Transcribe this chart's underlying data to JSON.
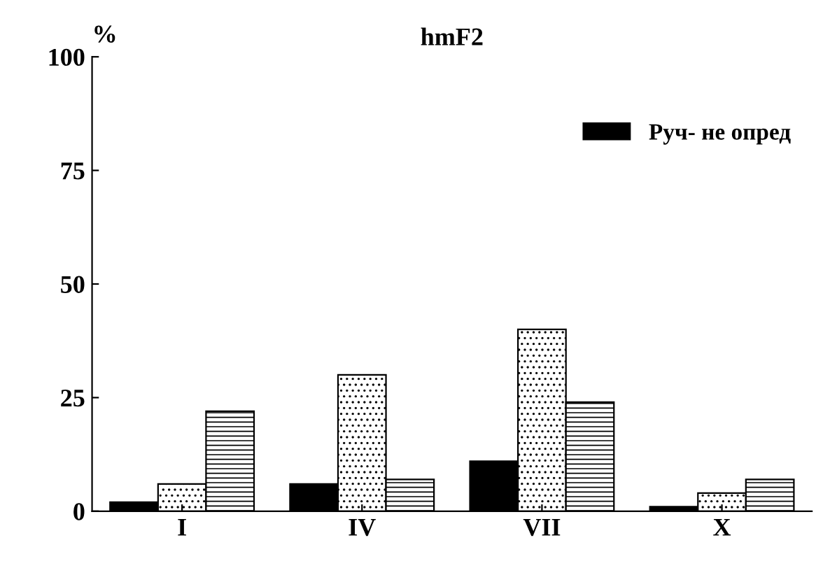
{
  "chart_data": {
    "type": "bar",
    "title": "hmF2",
    "ylabel": "%",
    "categories": [
      "I",
      "IV",
      "VII",
      "X"
    ],
    "series": [
      {
        "name": "Руч- не опред",
        "color": "#000000",
        "values": [
          2,
          6,
          11,
          1
        ]
      },
      {
        "color": "#000000",
        "values": [
          6,
          30,
          40,
          4
        ]
      },
      {
        "color": "#000000",
        "values": [
          22,
          7,
          24,
          7
        ]
      }
    ],
    "ylim": [
      0,
      100
    ],
    "yticks": [
      0,
      25,
      50,
      75,
      100
    ],
    "grid": false,
    "legend": "top right"
  }
}
